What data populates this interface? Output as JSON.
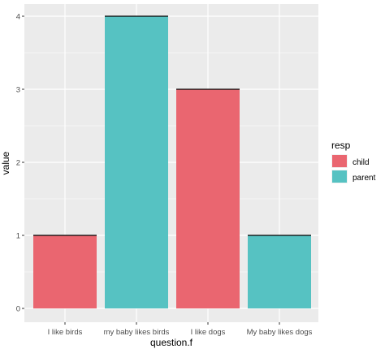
{
  "chart_data": {
    "type": "bar",
    "categories": [
      "I like birds",
      "my baby likes birds",
      "I like dogs",
      "My baby likes dogs"
    ],
    "values": [
      1,
      4,
      3,
      1
    ],
    "groups": [
      "child",
      "parent",
      "child",
      "parent"
    ],
    "xlabel": "question.f",
    "ylabel": "value",
    "ylim": [
      0,
      4
    ],
    "yticks": [
      0,
      1,
      2,
      3,
      4
    ],
    "grid": true,
    "legend": {
      "title": "resp",
      "placement": "right",
      "entries": [
        {
          "name": "child",
          "color": "#ea6670"
        },
        {
          "name": "parent",
          "color": "#56c2c2"
        }
      ]
    },
    "panel_color": "#ebebeb",
    "gridline_color": "#ffffff",
    "bar_top_line_color": "#000000"
  }
}
